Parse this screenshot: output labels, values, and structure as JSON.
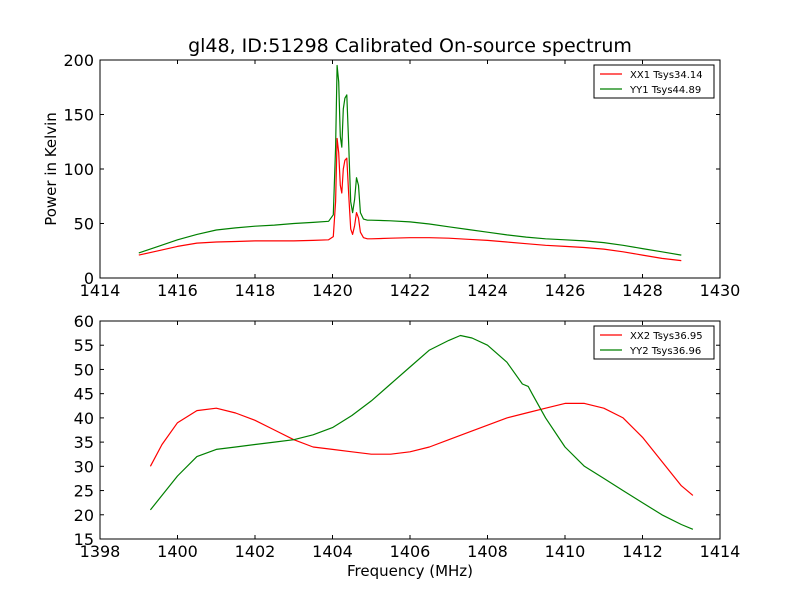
{
  "chart_data": [
    {
      "type": "line",
      "title": "gl48, ID:51298 Calibrated On-source spectrum",
      "xlabel": "",
      "ylabel": "Power in Kelvin",
      "xlim": [
        1414,
        1430
      ],
      "ylim": [
        0,
        200
      ],
      "xticks": [
        1414,
        1416,
        1418,
        1420,
        1422,
        1424,
        1426,
        1428,
        1430
      ],
      "yticks": [
        0,
        50,
        100,
        150,
        200
      ],
      "legend_position": "top-right",
      "series": [
        {
          "name": "XX1 Tsys34.14",
          "color": "#ff0000",
          "x": [
            1415.0,
            1415.5,
            1416.0,
            1416.5,
            1417.0,
            1417.5,
            1418.0,
            1418.5,
            1419.0,
            1419.5,
            1419.9,
            1420.02,
            1420.08,
            1420.12,
            1420.16,
            1420.2,
            1420.24,
            1420.28,
            1420.32,
            1420.37,
            1420.42,
            1420.47,
            1420.52,
            1420.57,
            1420.62,
            1420.67,
            1420.72,
            1420.8,
            1420.9,
            1421.0,
            1421.5,
            1422.0,
            1422.5,
            1423.0,
            1423.5,
            1424.0,
            1424.5,
            1425.0,
            1425.5,
            1426.0,
            1426.5,
            1427.0,
            1427.5,
            1428.0,
            1428.5,
            1429.0
          ],
          "y": [
            21,
            25,
            29,
            32,
            33,
            33.5,
            34,
            34,
            34,
            34.5,
            35,
            38,
            70,
            128,
            115,
            85,
            78,
            100,
            108,
            110,
            75,
            45,
            40,
            48,
            60,
            55,
            42,
            37,
            36,
            36,
            36.5,
            37,
            37,
            36.5,
            35.5,
            34.5,
            33,
            31.5,
            30,
            29,
            28,
            26.5,
            24,
            21,
            18,
            16
          ]
        },
        {
          "name": "YY1 Tsys44.89",
          "color": "#008000",
          "x": [
            1415.0,
            1415.5,
            1416.0,
            1416.5,
            1417.0,
            1417.5,
            1418.0,
            1418.5,
            1419.0,
            1419.5,
            1419.9,
            1420.02,
            1420.08,
            1420.12,
            1420.16,
            1420.2,
            1420.24,
            1420.28,
            1420.32,
            1420.37,
            1420.42,
            1420.47,
            1420.52,
            1420.57,
            1420.62,
            1420.67,
            1420.72,
            1420.8,
            1420.9,
            1421.0,
            1421.5,
            1422.0,
            1422.5,
            1423.0,
            1423.5,
            1424.0,
            1424.5,
            1425.0,
            1425.5,
            1426.0,
            1426.5,
            1427.0,
            1427.5,
            1428.0,
            1428.5,
            1429.0
          ],
          "y": [
            23,
            29,
            35,
            40,
            44,
            46,
            47.5,
            48.5,
            50,
            51,
            52,
            58,
            120,
            195,
            180,
            130,
            120,
            155,
            165,
            168,
            120,
            70,
            60,
            72,
            92,
            85,
            60,
            54,
            53,
            53,
            52.5,
            51.5,
            49.5,
            47,
            44.5,
            42,
            39.5,
            37.5,
            36,
            35,
            34,
            32.5,
            30,
            27,
            24,
            21
          ]
        }
      ]
    },
    {
      "type": "line",
      "title": "",
      "xlabel": "Frequency (MHz)",
      "ylabel": "",
      "xlim": [
        1398,
        1414
      ],
      "ylim": [
        15,
        60
      ],
      "xticks": [
        1398,
        1400,
        1402,
        1404,
        1406,
        1408,
        1410,
        1412,
        1414
      ],
      "yticks": [
        15,
        20,
        25,
        30,
        35,
        40,
        45,
        50,
        55,
        60
      ],
      "legend_position": "top-right",
      "series": [
        {
          "name": "XX2 Tsys36.95",
          "color": "#ff0000",
          "x": [
            1399.3,
            1399.6,
            1400.0,
            1400.5,
            1401.0,
            1401.5,
            1402.0,
            1402.5,
            1403.0,
            1403.5,
            1404.0,
            1404.5,
            1405.0,
            1405.5,
            1406.0,
            1406.5,
            1407.0,
            1407.5,
            1408.0,
            1408.5,
            1409.0,
            1409.5,
            1410.0,
            1410.5,
            1411.0,
            1411.5,
            1412.0,
            1412.5,
            1413.0,
            1413.3
          ],
          "y": [
            30,
            34.5,
            39,
            41.5,
            42,
            41,
            39.5,
            37.5,
            35.5,
            34,
            33.5,
            33,
            32.5,
            32.5,
            33,
            34,
            35.5,
            37,
            38.5,
            40,
            41,
            42,
            43,
            43,
            42,
            40,
            36,
            31,
            26,
            24
          ]
        },
        {
          "name": "YY2 Tsys36.96",
          "color": "#008000",
          "x": [
            1399.3,
            1399.6,
            1400.0,
            1400.5,
            1401.0,
            1401.5,
            1402.0,
            1402.5,
            1403.0,
            1403.5,
            1404.0,
            1404.5,
            1405.0,
            1405.5,
            1406.0,
            1406.5,
            1407.0,
            1407.3,
            1407.6,
            1408.0,
            1408.5,
            1408.9,
            1409.05,
            1409.15,
            1409.5,
            1410.0,
            1410.5,
            1411.0,
            1411.5,
            1412.0,
            1412.5,
            1413.0,
            1413.3
          ],
          "y": [
            21,
            24,
            28,
            32,
            33.5,
            34,
            34.5,
            35,
            35.5,
            36.5,
            38,
            40.5,
            43.5,
            47,
            50.5,
            54,
            56,
            57,
            56.5,
            55,
            51.5,
            47,
            46.5,
            45,
            40,
            34,
            30,
            27.5,
            25,
            22.5,
            20,
            18,
            17
          ]
        }
      ]
    }
  ]
}
